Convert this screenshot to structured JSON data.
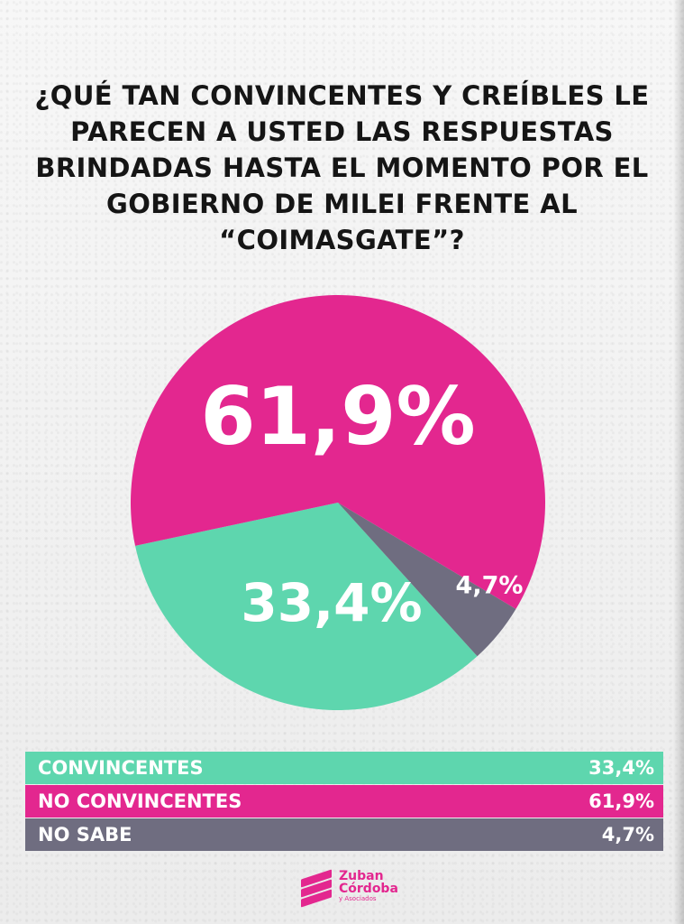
{
  "title": "¿QUÉ TAN CONVINCENTES Y CREÍBLES LE PARECEN A USTED LAS RESPUESTAS BRINDADAS HASTA EL MOMENTO POR EL GOBIERNO DE MILEI FRENTE AL “COIMASGATE”?",
  "chart_data": {
    "type": "pie",
    "title": "¿QUÉ TAN CONVINCENTES Y CREÍBLES LE PARECEN A USTED LAS RESPUESTAS BRINDADAS HASTA EL MOMENTO POR EL GOBIERNO DE MILEI FRENTE AL “COIMASGATE”?",
    "slices": [
      {
        "label": "CONVINCENTES",
        "value": 33.4,
        "display": "33,4%",
        "color": "#5ed6ae"
      },
      {
        "label": "NO CONVINCENTES",
        "value": 61.9,
        "display": "61,9%",
        "color": "#e3278f"
      },
      {
        "label": "NO SABE",
        "value": 4.7,
        "display": "4,7%",
        "color": "#6f6d80"
      }
    ]
  },
  "legend": {
    "rows": [
      {
        "label": "CONVINCENTES",
        "value": "33,4%",
        "color": "#5ed6ae"
      },
      {
        "label": "NO CONVINCENTES",
        "value": "61,9%",
        "color": "#e3278f"
      },
      {
        "label": "NO SABE",
        "value": "4,7%",
        "color": "#6f6d80"
      }
    ]
  },
  "logo": {
    "line1": "Zuban",
    "line2": "Córdoba",
    "line3": "y Asociados"
  }
}
